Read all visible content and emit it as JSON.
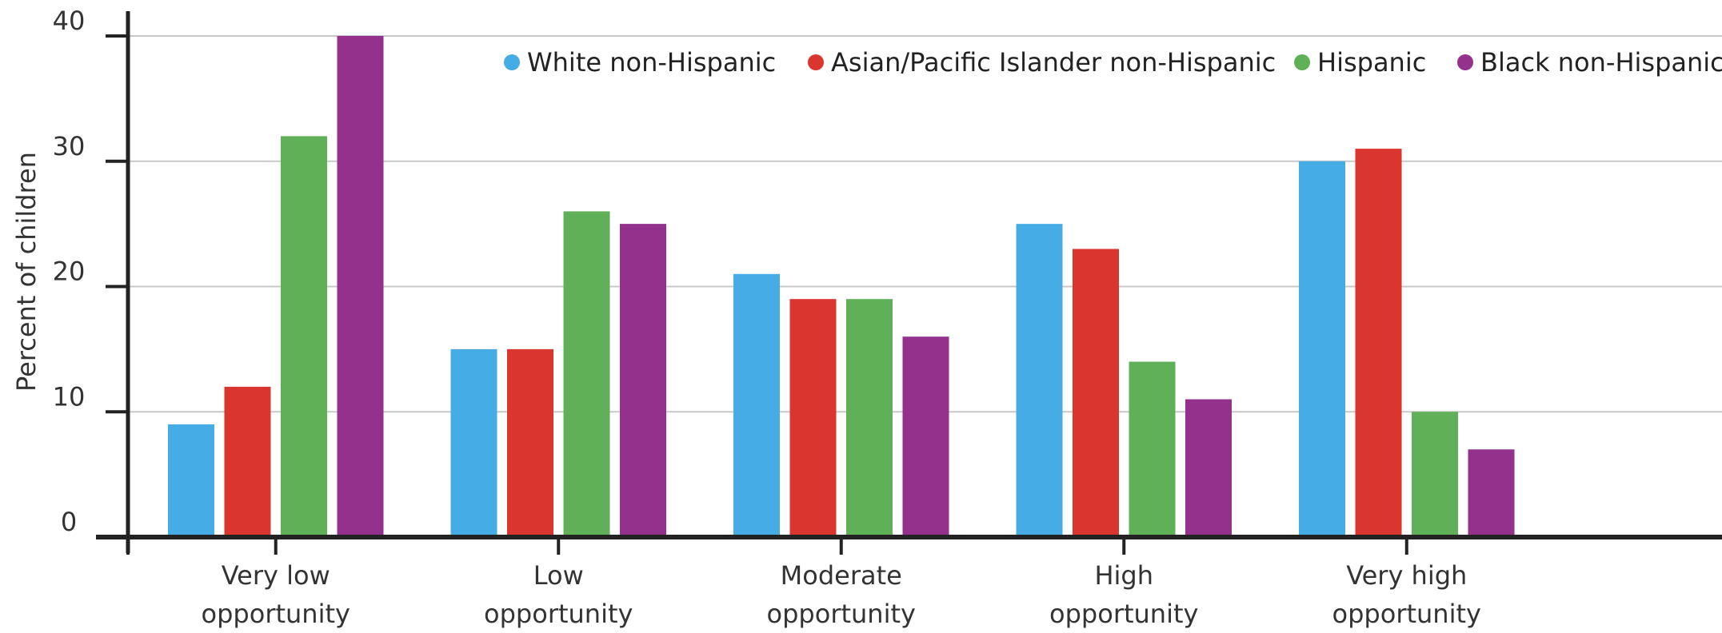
{
  "chart_data": {
    "type": "bar",
    "title": "",
    "xlabel": "",
    "ylabel": "Percent of children",
    "ylim": [
      0,
      40
    ],
    "yticks": [
      0,
      10,
      20,
      30,
      40
    ],
    "grid": "horizontal",
    "legend_position": "top-right",
    "categories": [
      [
        "Very low",
        "opportunity"
      ],
      [
        "Low",
        "opportunity"
      ],
      [
        "Moderate",
        "opportunity"
      ],
      [
        "High",
        "opportunity"
      ],
      [
        "Very high",
        "opportunity"
      ]
    ],
    "series": [
      {
        "name": "White non-Hispanic",
        "color": "#45ace5",
        "values": [
          9,
          15,
          21,
          25,
          30
        ]
      },
      {
        "name": "Asian/Pacific Islander non-Hispanic",
        "color": "#db3530",
        "values": [
          12,
          15,
          19,
          23,
          31
        ]
      },
      {
        "name": "Hispanic",
        "color": "#60b058",
        "values": [
          32,
          26,
          19,
          14,
          10
        ]
      },
      {
        "name": "Black non-Hispanic",
        "color": "#94318d",
        "values": [
          40,
          25,
          16,
          11,
          7
        ]
      }
    ]
  }
}
